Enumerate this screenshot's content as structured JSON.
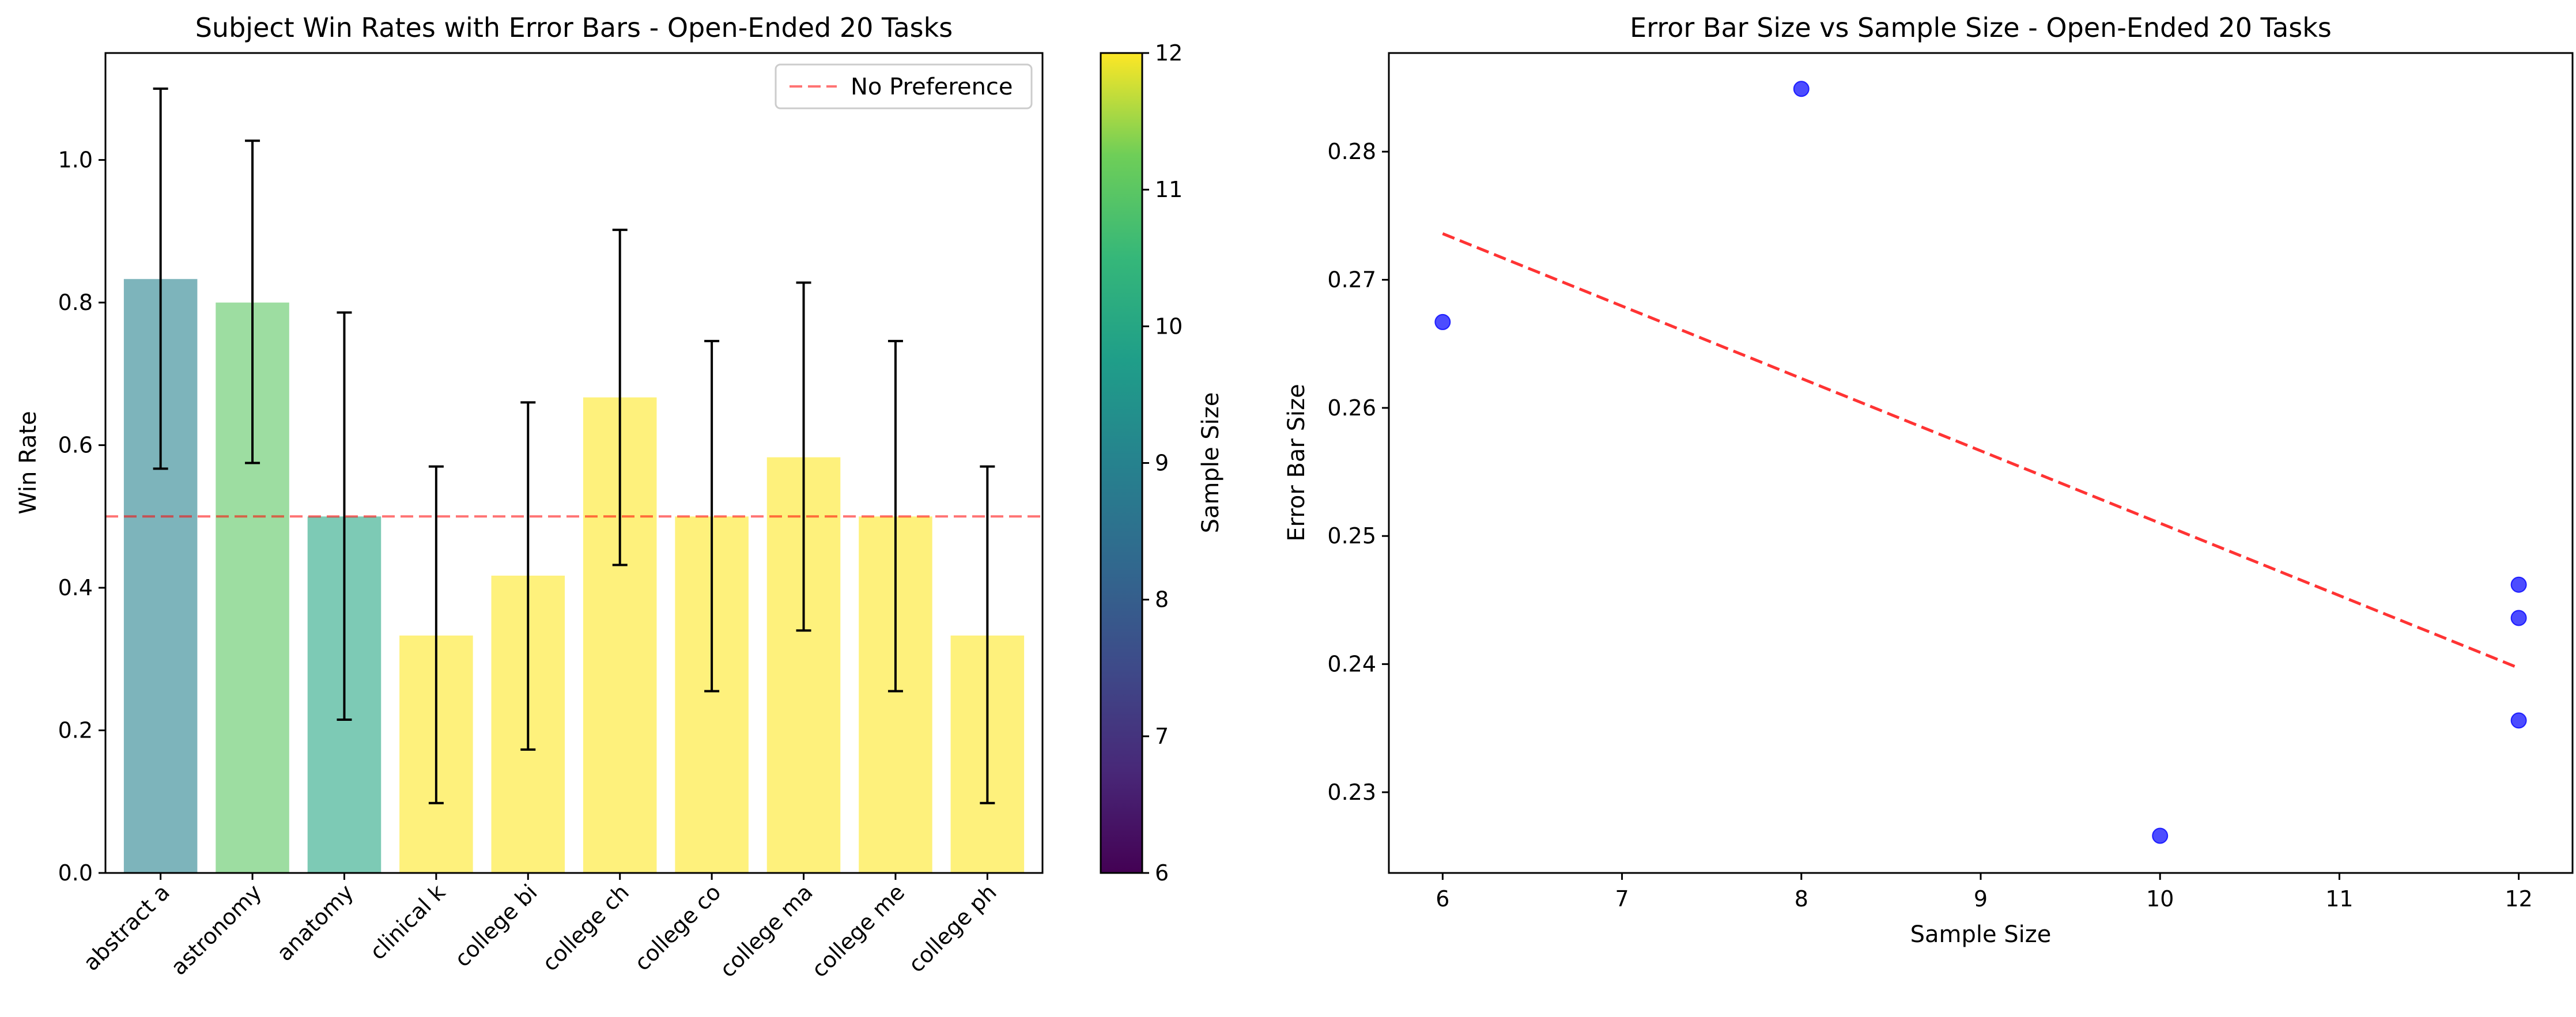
{
  "chart_data": [
    {
      "type": "bar",
      "title": "Subject Win Rates with Error Bars - Open-Ended 20 Tasks",
      "xlabel": "",
      "ylabel": "Win Rate",
      "ylim": [
        0,
        1.15
      ],
      "yticks": [
        0.0,
        0.2,
        0.4,
        0.6,
        0.8,
        1.0
      ],
      "ytick_labels": [
        "0.0",
        "0.2",
        "0.4",
        "0.6",
        "0.8",
        "1.0"
      ],
      "categories": [
        "abstract a",
        "astronomy",
        "anatomy",
        "clinical k",
        "college bi",
        "college ch",
        "college co",
        "college ma",
        "college me",
        "college ph"
      ],
      "values": [
        0.833,
        0.8,
        0.5,
        0.333,
        0.417,
        0.667,
        0.5,
        0.583,
        0.5,
        0.333
      ],
      "error_lower": [
        0.567,
        0.575,
        0.215,
        0.098,
        0.173,
        0.432,
        0.255,
        0.34,
        0.255,
        0.098
      ],
      "error_upper": [
        1.1,
        1.027,
        0.786,
        0.57,
        0.66,
        0.902,
        0.746,
        0.828,
        0.746,
        0.57
      ],
      "sample_sizes": [
        9,
        11,
        10,
        12,
        12,
        12,
        12,
        12,
        12,
        12
      ],
      "bar_alpha": 0.6,
      "reference_line": {
        "y": 0.5,
        "label": "No Preference",
        "color": "#ff0000",
        "style": "dashed"
      },
      "legend": {
        "placement": "upper right",
        "entries": [
          "No Preference"
        ]
      },
      "colorbar": {
        "label": "Sample Size",
        "range": [
          6,
          12
        ],
        "ticks": [
          6,
          7,
          8,
          9,
          10,
          11,
          12
        ],
        "tick_labels": [
          "6",
          "7",
          "8",
          "9",
          "10",
          "11",
          "12"
        ],
        "colormap": "viridis"
      },
      "grid": false
    },
    {
      "type": "scatter",
      "title": "Error Bar Size vs Sample Size - Open-Ended 20 Tasks",
      "xlabel": "Sample Size",
      "ylabel": "Error Bar Size",
      "xlim": [
        5.7,
        12.3
      ],
      "ylim": [
        0.2237,
        0.2877
      ],
      "xticks": [
        6,
        7,
        8,
        9,
        10,
        11,
        12
      ],
      "xtick_labels": [
        "6",
        "7",
        "8",
        "9",
        "10",
        "11",
        "12"
      ],
      "yticks": [
        0.23,
        0.24,
        0.25,
        0.26,
        0.27,
        0.28
      ],
      "ytick_labels": [
        "0.23",
        "0.24",
        "0.25",
        "0.26",
        "0.27",
        "0.28"
      ],
      "points": [
        {
          "x": 6,
          "y": 0.2667
        },
        {
          "x": 8,
          "y": 0.2849
        },
        {
          "x": 10,
          "y": 0.2266
        },
        {
          "x": 12,
          "y": 0.2462
        },
        {
          "x": 12,
          "y": 0.2436
        },
        {
          "x": 12,
          "y": 0.2356
        }
      ],
      "point_color": "#0000ff",
      "trend_line": {
        "x": [
          6,
          12
        ],
        "y": [
          0.2736,
          0.2397
        ],
        "color": "#ff0000",
        "style": "dashed"
      },
      "grid": false
    }
  ]
}
